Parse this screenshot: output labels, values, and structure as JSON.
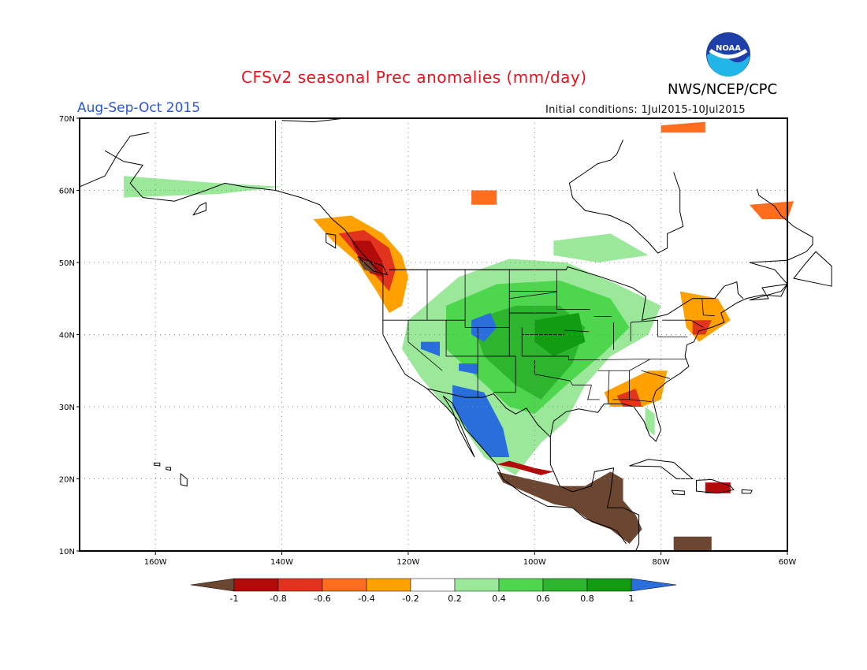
{
  "title": "CFSv2 seasonal Prec anomalies (mm/day)",
  "period": "Aug-Sep-Oct 2015",
  "initial_conditions": "Initial conditions: 1Jul2015-10Jul2015",
  "agency": "NWS/NCEP/CPC",
  "logo_text": "NOAA",
  "map": {
    "lon_range": [
      -172,
      -60
    ],
    "lat_range": [
      10,
      70
    ],
    "lon_ticks": [
      "160W",
      "140W",
      "120W",
      "100W",
      "80W",
      "60W"
    ],
    "lat_ticks": [
      "70N",
      "60N",
      "50N",
      "40N",
      "30N",
      "20N",
      "10N"
    ],
    "gridlines": "dotted"
  },
  "legend": {
    "labels": [
      "-1",
      "-0.8",
      "-0.6",
      "-0.4",
      "-0.2",
      "0.2",
      "0.4",
      "0.6",
      "0.8",
      "1"
    ],
    "colors": [
      "#6b4630",
      "#b30a0a",
      "#e1331d",
      "#ff6e1e",
      "#ffa100",
      "#ffffff",
      "#9be89b",
      "#4fd64f",
      "#2db52d",
      "#129c12",
      "#2a6edb"
    ]
  },
  "colors": {
    "title": "#e8111c",
    "period": "#2a56d8",
    "ocean": "#ffffff",
    "coast": "#000000"
  }
}
